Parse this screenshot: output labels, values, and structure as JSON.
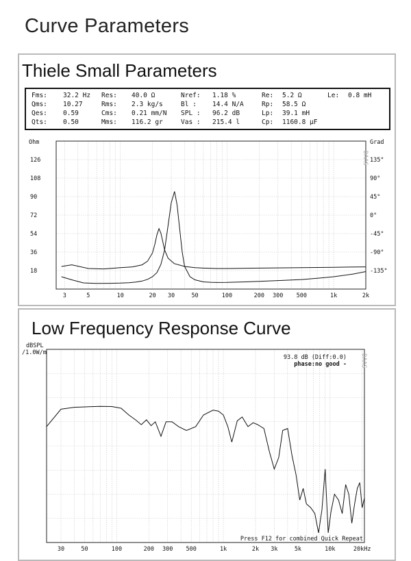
{
  "page": {
    "title": "Curve Parameters"
  },
  "ts_panel": {
    "title": "Thiele Small Parameters",
    "rows": [
      [
        [
          "Fms:",
          "32.2 Hz"
        ],
        [
          "Res:",
          "40.0 Ω"
        ],
        [
          "Nref:",
          "1.18 %"
        ],
        [
          "Re:",
          "5.2 Ω"
        ],
        [
          "Le:",
          "0.8 mH"
        ]
      ],
      [
        [
          "Qms:",
          "10.27"
        ],
        [
          "Rms:",
          "2.3 kg/s"
        ],
        [
          "Bl :",
          "14.4 N/A"
        ],
        [
          "Rp:",
          "58.5 Ω"
        ]
      ],
      [
        [
          "Qes:",
          "0.59"
        ],
        [
          "Cms:",
          "0.21 mm/N"
        ],
        [
          "SPL :",
          "96.2 dB"
        ],
        [
          "Lp:",
          "39.1 mH"
        ]
      ],
      [
        [
          "Qts:",
          "0.50"
        ],
        [
          "Mms:",
          "116.2 gr"
        ],
        [
          "Vas :",
          "215.4 l"
        ],
        [
          "Cp:",
          "1160.8 µF"
        ]
      ]
    ]
  },
  "fr_panel": {
    "title": "Low Frequency Response Curve"
  },
  "chart_data": [
    {
      "type": "line",
      "xscale": "log",
      "xlim": [
        2.5,
        2000
      ],
      "ylim": [
        0,
        144
      ],
      "y2lim": [
        -180,
        180
      ],
      "ylabel": "Ohm",
      "y2label": "Grad",
      "watermark": "DAAS",
      "x_ticks": [
        3,
        5,
        10,
        20,
        30,
        50,
        100,
        200,
        300,
        500,
        1000,
        2000
      ],
      "x_tick_labels": [
        "3",
        "5",
        "10",
        "20",
        "30",
        "50",
        "100",
        "200",
        "300",
        "500",
        "1k",
        "2k"
      ],
      "y_ticks": [
        18,
        36,
        54,
        72,
        90,
        108,
        126
      ],
      "y_tick_labels": [
        "18",
        "36",
        "54",
        "72",
        "90",
        "108",
        "126"
      ],
      "y2_ticks": [
        -135,
        -90,
        -45,
        0,
        45,
        90,
        135
      ],
      "y2_tick_labels": [
        "-135°",
        "-90°",
        "-45°",
        "0°",
        "45°",
        "90°",
        "135°"
      ],
      "grid": true,
      "series": [
        {
          "color": "#111111",
          "x": [
            2.8,
            3.5,
            4.5,
            6,
            8,
            10,
            12,
            14,
            16,
            18,
            20,
            22,
            24,
            26,
            28,
            30,
            32.2,
            34,
            36,
            38,
            40,
            45,
            50,
            60,
            70,
            80,
            100,
            150,
            200,
            300,
            500,
            700,
            1000,
            1500,
            2000
          ],
          "y": [
            12,
            9,
            6,
            5.5,
            5.6,
            5.8,
            6.2,
            6.8,
            7.8,
            9.5,
            12,
            16,
            24,
            38,
            62,
            84,
            95,
            82,
            58,
            36,
            22,
            12,
            9,
            7,
            6.6,
            6.4,
            6.5,
            7,
            7.5,
            8.3,
            9.3,
            10.5,
            12,
            14.5,
            17
          ]
        },
        {
          "color": "#111111",
          "x": [
            2.8,
            3.5,
            5,
            7,
            10,
            13,
            16,
            18,
            20,
            21,
            22,
            23,
            24,
            25,
            26,
            28,
            32,
            40,
            50,
            60,
            80,
            100,
            200,
            500,
            1000,
            2000
          ],
          "y": [
            -125,
            -121,
            -130,
            -131,
            -128,
            -126,
            -121,
            -112,
            -92,
            -72,
            -48,
            -33,
            -44,
            -65,
            -85,
            -105,
            -118,
            -125,
            -128,
            -129,
            -130,
            -130,
            -129,
            -128,
            -127,
            -126
          ]
        }
      ]
    },
    {
      "type": "line",
      "xscale": "log",
      "xlim": [
        22,
        21000
      ],
      "ylabel": "dBSPL /1.0W/m",
      "annotations": [
        "93.8 dB (Diff:0.0)",
        "phase:no good -",
        "Press F12 for combined Quick Repeat",
        "DAAS"
      ],
      "x_ticks": [
        30,
        50,
        100,
        200,
        300,
        500,
        1000,
        2000,
        3000,
        5000,
        10000,
        20000
      ],
      "x_tick_labels": [
        "30",
        "50",
        "100",
        "200",
        "300",
        "500",
        "1k",
        "2k",
        "3k",
        "5k",
        "10k",
        "20kHz"
      ],
      "grid": true,
      "series": [
        {
          "color": "#111111",
          "x": [
            22,
            30,
            40,
            55,
            70,
            90,
            110,
            130,
            150,
            170,
            190,
            210,
            230,
            260,
            290,
            330,
            380,
            450,
            550,
            650,
            800,
            900,
            1000,
            1100,
            1200,
            1350,
            1500,
            1700,
            1900,
            2100,
            2400,
            2700,
            3000,
            3300,
            3600,
            4000,
            4400,
            4800,
            5200,
            5600,
            6000,
            6600,
            7200,
            7800,
            8400,
            9000,
            9600,
            10200,
            11000,
            12000,
            13000,
            14000,
            15000,
            16000,
            17000,
            18000,
            19000,
            20000,
            21000
          ],
          "y": [
            60,
            69,
            70,
            70.3,
            70.5,
            70.4,
            69.5,
            66,
            63.5,
            61,
            63.5,
            60.5,
            62.5,
            55,
            62.5,
            62.5,
            60,
            58,
            60,
            66,
            68.5,
            68,
            66,
            60,
            52,
            63,
            65,
            60,
            62,
            61,
            59,
            47,
            38,
            44,
            58,
            59,
            45,
            35,
            22,
            28,
            20,
            18,
            15,
            5,
            17,
            38,
            5,
            16,
            25,
            22,
            15,
            30,
            25,
            10,
            20,
            28,
            31,
            18,
            23
          ]
        }
      ]
    }
  ]
}
